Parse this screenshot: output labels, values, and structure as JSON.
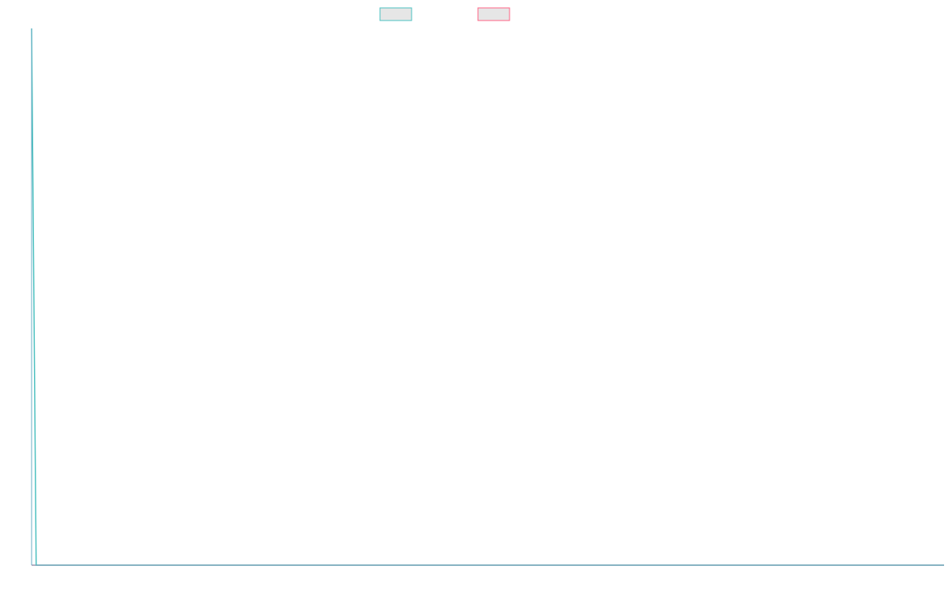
{
  "chart_data": {
    "type": "line",
    "title": "",
    "xlabel": "",
    "ylabel": "",
    "legend_placement": "top-center",
    "grid": false,
    "x": [
      0,
      1,
      2,
      3,
      4,
      5,
      6,
      7,
      8,
      9,
      10,
      11,
      12,
      13,
      14,
      15,
      16,
      17,
      18,
      19,
      20,
      21,
      22,
      23,
      24,
      25,
      26,
      27,
      28,
      29,
      30,
      31,
      32,
      33,
      34,
      35,
      36,
      37,
      38,
      39,
      40,
      41,
      42,
      43,
      44,
      45,
      46,
      47,
      48,
      49,
      50,
      51,
      52,
      53,
      54,
      55,
      56,
      57,
      58,
      59,
      60,
      61,
      62,
      63,
      64,
      65,
      66,
      67,
      68,
      69,
      70,
      71,
      72,
      73,
      74,
      75,
      76,
      77,
      78,
      79,
      80,
      81,
      82,
      83,
      84,
      85,
      86,
      87,
      88,
      89,
      90,
      91,
      92,
      93,
      94,
      95,
      96,
      97,
      98,
      99,
      100,
      101,
      102,
      103,
      104,
      105,
      106,
      107,
      108,
      109,
      110,
      111,
      112,
      113,
      114,
      115,
      116,
      117,
      118,
      119,
      120,
      121,
      122,
      123,
      124,
      125,
      126,
      127,
      128,
      129,
      130,
      131,
      132,
      133,
      134,
      135,
      136,
      137,
      138,
      139,
      140,
      141,
      142,
      143,
      144,
      145,
      146,
      147,
      148,
      149,
      150,
      151,
      152,
      153,
      154,
      155,
      156,
      157,
      158,
      159,
      160,
      161,
      162,
      163,
      164,
      165,
      166,
      167,
      168,
      169,
      170,
      171,
      172,
      173,
      174,
      175,
      176,
      177,
      178,
      179,
      180,
      181,
      182,
      183,
      184,
      185,
      186,
      187,
      188,
      189,
      190,
      191,
      192,
      193,
      194,
      195,
      196,
      197,
      198,
      199,
      200
    ],
    "xlim": [
      0,
      200
    ],
    "ylim": [
      0,
      1
    ],
    "series": [
      {
        "color": "#4bc0c0",
        "fill": "#e6e6e6",
        "values": [
          1,
          0,
          0,
          0,
          0,
          0,
          0,
          0,
          0,
          0,
          0,
          0,
          0,
          0,
          0,
          0,
          0,
          0,
          0,
          0,
          0,
          0,
          0,
          0,
          0,
          0,
          0,
          0,
          0,
          0,
          0,
          0,
          0,
          0,
          0,
          0,
          0,
          0,
          0,
          0,
          0,
          0,
          0,
          0,
          0,
          0,
          0,
          0,
          0,
          0,
          0,
          0,
          0,
          0,
          0,
          0,
          0,
          0,
          0,
          0,
          0,
          0,
          0,
          0,
          0,
          0,
          0,
          0,
          0,
          0,
          0,
          0,
          0,
          0,
          0,
          0,
          0,
          0,
          0,
          0,
          0,
          0,
          0,
          0,
          0,
          0,
          0,
          0,
          0,
          0,
          0,
          0,
          0,
          0,
          0,
          0,
          0,
          0,
          0,
          0,
          0,
          0,
          0,
          0,
          0,
          0,
          0,
          0,
          0,
          0,
          0,
          0,
          0,
          0,
          0,
          0,
          0,
          0,
          0,
          0,
          0,
          0,
          0,
          0,
          0,
          0,
          0,
          0,
          0,
          0,
          0,
          0,
          0,
          0,
          0,
          0,
          0,
          0,
          0,
          0,
          0,
          0,
          0,
          0,
          0,
          0,
          0,
          0,
          0,
          0,
          0,
          0,
          0,
          0,
          0,
          0,
          0,
          0,
          0,
          0,
          0,
          0,
          0,
          0,
          0,
          0,
          0,
          0,
          0,
          0,
          0,
          0,
          0,
          0,
          0,
          0,
          0,
          0,
          0,
          0,
          0,
          0,
          0,
          0,
          0,
          0,
          0,
          0,
          0,
          0,
          0,
          0,
          0,
          0,
          0,
          0,
          0,
          0,
          0,
          0,
          0
        ]
      },
      {
        "color": "#ff6384",
        "fill": "#e6e6e6",
        "values": [
          0,
          0,
          0,
          0,
          0,
          0,
          0,
          0,
          0,
          0,
          0,
          0,
          0,
          0,
          0,
          0,
          0,
          0,
          0,
          0,
          0,
          0,
          0,
          0,
          0,
          0,
          0,
          0,
          0,
          0,
          0,
          0,
          0,
          0,
          0,
          0,
          0,
          0,
          0,
          0,
          0,
          0,
          0,
          0,
          0,
          0,
          0,
          0,
          0,
          0,
          0,
          0,
          0,
          0,
          0,
          0,
          0,
          0,
          0,
          0,
          0,
          0,
          0,
          0,
          0,
          0,
          0,
          0,
          0,
          0,
          0,
          0,
          0,
          0,
          0,
          0,
          0,
          0,
          0,
          0,
          0,
          0,
          0,
          0,
          0,
          0,
          0,
          0,
          0,
          0,
          0,
          0,
          0,
          0,
          0,
          0,
          0,
          0,
          0,
          0,
          0,
          0,
          0,
          0,
          0,
          0,
          0,
          0,
          0,
          0,
          0,
          0,
          0,
          0,
          0,
          0,
          0,
          0,
          0,
          0,
          0,
          0,
          0,
          0,
          0,
          0,
          0,
          0,
          0,
          0,
          0,
          0,
          0,
          0,
          0,
          0,
          0,
          0,
          0,
          0,
          0,
          0,
          0,
          0,
          0,
          0,
          0,
          0,
          0,
          0,
          0,
          0,
          0,
          0,
          0,
          0,
          0,
          0,
          0,
          0,
          0,
          0,
          0,
          0,
          0,
          0,
          0,
          0,
          0,
          0,
          0,
          0,
          0,
          0,
          0,
          0,
          0,
          0,
          0,
          0,
          0,
          0,
          0,
          0,
          0,
          0,
          0,
          0,
          0,
          0,
          0,
          0,
          0,
          0,
          0,
          0,
          0,
          0,
          0,
          0,
          0
        ]
      }
    ],
    "axis_color": "#6aaec4"
  }
}
